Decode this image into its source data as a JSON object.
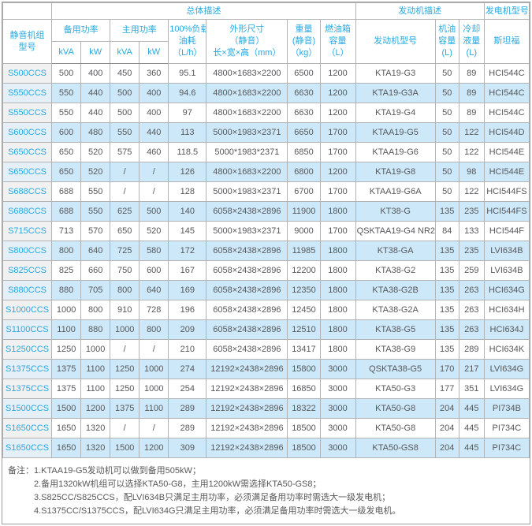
{
  "colors": {
    "accent_cyan": "#29A9E0",
    "stripe_blue": "#CDE8F9",
    "model_col_gray": "#F1F1F1",
    "body_text": "#58595B",
    "grid_border": "#B3B3B3"
  },
  "table": {
    "group_headers": {
      "overall": "总体描述",
      "engine": "发动机描述",
      "generator": "发电机型号"
    },
    "columns": {
      "model": {
        "line1": "静音机组",
        "line2": "型号"
      },
      "standby_power": "备用功率",
      "prime_power": "主用功率",
      "kva": "kVA",
      "kw": "kW",
      "fuel_consumption": {
        "line1": "100%负载",
        "line2": "油耗",
        "line3": "（L/h）"
      },
      "dimensions": {
        "line1": "外形尺寸",
        "line2": "（静音）",
        "line3": "长×宽×高（mm）"
      },
      "weight": {
        "line1": "重量",
        "line2": "(静音)",
        "line3": "（kg）"
      },
      "fuel_tank": {
        "line1": "燃油箱",
        "line2": "容量",
        "line3": "（L）"
      },
      "engine_model": "发动机型号",
      "oil_capacity": {
        "line1": "机油",
        "line2": "容量",
        "line3": "(L)"
      },
      "coolant": {
        "line1": "冷却",
        "line2": "液量",
        "line3": "(L)"
      },
      "stamford": "斯坦福"
    },
    "rows": [
      [
        "S500CCS",
        "500",
        "400",
        "450",
        "360",
        "95.1",
        "4800×1683×2200",
        "6500",
        "1200",
        "KTA19-G3",
        "50",
        "89",
        "HCI544C"
      ],
      [
        "S550CCS",
        "550",
        "440",
        "500",
        "400",
        "94.6",
        "4800×1683×2200",
        "6630",
        "1200",
        "KTA19-G3A",
        "50",
        "89",
        "HCI544C"
      ],
      [
        "S550CCS",
        "550",
        "440",
        "500",
        "400",
        "97",
        "4800×1683×2200",
        "6630",
        "1200",
        "KTA19-G4",
        "50",
        "89",
        "HCI544C"
      ],
      [
        "S600CCS",
        "600",
        "480",
        "550",
        "440",
        "113",
        "5000×1983×2371",
        "6650",
        "1700",
        "KTAA19-G5",
        "50",
        "122",
        "HCI544D"
      ],
      [
        "S650CCS",
        "650",
        "520",
        "575",
        "460",
        "118.5",
        "5000*1983*2371",
        "6850",
        "1700",
        "KTAA19-G6",
        "50",
        "122",
        "HCI544E"
      ],
      [
        "S650CCS",
        "650",
        "520",
        "/",
        "/",
        "126",
        "4800×1683×2200",
        "6800",
        "1200",
        "KTA19-G8",
        "50",
        "98",
        "HCI544E"
      ],
      [
        "S688CCS",
        "688",
        "550",
        "/",
        "/",
        "128",
        "5000×1983×2371",
        "6700",
        "1700",
        "KTAA19-G6A",
        "50",
        "122",
        "HCI544FS"
      ],
      [
        "S688CCS",
        "688",
        "550",
        "625",
        "500",
        "140",
        "6058×2438×2896",
        "11900",
        "1800",
        "KT38-G",
        "135",
        "235",
        "HCI544FS"
      ],
      [
        "S715CCS",
        "713",
        "570",
        "650",
        "520",
        "145",
        "5000×1983×2371",
        "9000",
        "1700",
        "QSKTAA19-G4 NR2",
        "84",
        "133",
        "HCI544F"
      ],
      [
        "S800CCS",
        "800",
        "640",
        "725",
        "580",
        "172",
        "6058×2438×2896",
        "11985",
        "1800",
        "KT38-GA",
        "135",
        "235",
        "LVI634B"
      ],
      [
        "S825CCS",
        "825",
        "660",
        "750",
        "600",
        "167",
        "6058×2438×2896",
        "12200",
        "1800",
        "KTA38-G2",
        "135",
        "259",
        "LVI634B"
      ],
      [
        "S880CCS",
        "880",
        "705",
        "800",
        "640",
        "169",
        "6058×2438×2896",
        "12350",
        "1800",
        "KTA38-G2B",
        "135",
        "263",
        "HCI634G"
      ],
      [
        "S1000CCS",
        "1000",
        "800",
        "910",
        "728",
        "196",
        "6058×2438×2896",
        "12450",
        "1800",
        "KTA38-G2A",
        "135",
        "263",
        "HCI634H"
      ],
      [
        "S1100CCS",
        "1100",
        "880",
        "1000",
        "800",
        "209",
        "6058×2438×2896",
        "12510",
        "1800",
        "KTA38-G5",
        "135",
        "263",
        "HCI634J"
      ],
      [
        "S1250CCS",
        "1250",
        "1000",
        "/",
        "/",
        "210",
        "6058×2438×2896",
        "13417",
        "1800",
        "KTA38-G9",
        "135",
        "289",
        "HCI634K"
      ],
      [
        "S1375CCS",
        "1375",
        "1100",
        "1250",
        "1000",
        "274",
        "12192×2438×2896",
        "15800",
        "3000",
        "QSKTA38-G5",
        "170",
        "217",
        "LVI634G"
      ],
      [
        "S1375CCS",
        "1375",
        "1100",
        "1250",
        "1000",
        "254",
        "12192×2438×2896",
        "16850",
        "3000",
        "KTA50-G3",
        "177",
        "351",
        "LVI634G"
      ],
      [
        "S1500CCS",
        "1500",
        "1200",
        "1375",
        "1100",
        "289",
        "12192×2438×2896",
        "18322",
        "3000",
        "KTA50-G8",
        "204",
        "445",
        "PI734B"
      ],
      [
        "S1650CCS",
        "1650",
        "1320",
        "/",
        "/",
        "289",
        "12192×2438×2896",
        "18500",
        "3000",
        "KTA50-G8",
        "204",
        "445",
        "PI734C"
      ],
      [
        "S1650CCS",
        "1650",
        "1320",
        "1500",
        "1200",
        "309",
        "12192×2438×2896",
        "18500",
        "3000",
        "KTA50-GS8",
        "204",
        "445",
        "PI734C"
      ]
    ]
  },
  "notes": {
    "label": "备注：",
    "items": [
      "1.KTAA19-G5发动机可以做到备用505kW；",
      "2.备用1320kW机组可以选择KTA50-G8，主用1200kW需选择KTA50-GS8；",
      "3.S825CC/S825CCS，配LVI634B只满足主用功率，必须满足备用功率时需选大一级发电机；",
      "4.S1375CC/S1375CCS，配LVI634G只满足主用功率，必须满足备用功率时需选大一级发电机。"
    ]
  }
}
